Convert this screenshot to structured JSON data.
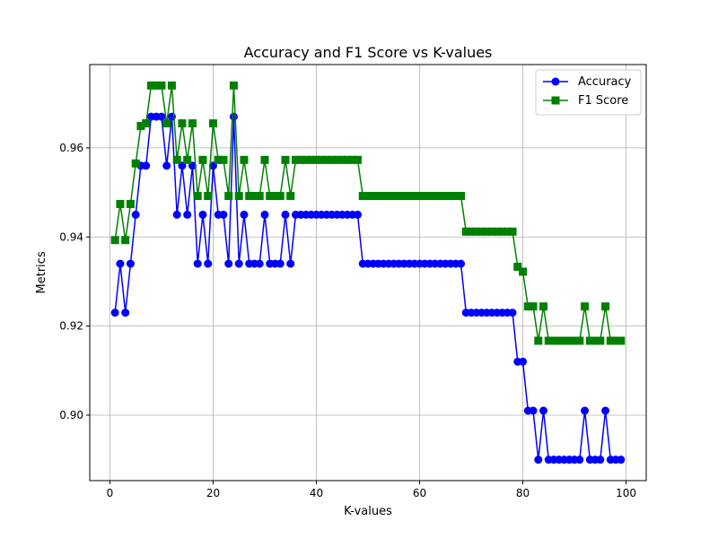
{
  "chart_data": {
    "type": "line",
    "title": "Accuracy and F1 Score vs K-values",
    "xlabel": "K-values",
    "ylabel": "Metrics",
    "xlim": [
      -3.9,
      103.9
    ],
    "ylim": [
      0.8853,
      0.9787
    ],
    "xticks": [
      0,
      20,
      40,
      60,
      80,
      100
    ],
    "yticks": [
      0.9,
      0.92,
      0.94,
      0.96
    ],
    "ytick_labels": [
      "0.90",
      "0.92",
      "0.94",
      "0.96"
    ],
    "grid": true,
    "legend_position": "top-right",
    "x": [
      1,
      2,
      3,
      4,
      5,
      6,
      7,
      8,
      9,
      10,
      11,
      12,
      13,
      14,
      15,
      16,
      17,
      18,
      19,
      20,
      21,
      22,
      23,
      24,
      25,
      26,
      27,
      28,
      29,
      30,
      31,
      32,
      33,
      34,
      35,
      36,
      37,
      38,
      39,
      40,
      41,
      42,
      43,
      44,
      45,
      46,
      47,
      48,
      49,
      50,
      51,
      52,
      53,
      54,
      55,
      56,
      57,
      58,
      59,
      60,
      61,
      62,
      63,
      64,
      65,
      66,
      67,
      68,
      69,
      70,
      71,
      72,
      73,
      74,
      75,
      76,
      77,
      78,
      79,
      80,
      81,
      82,
      83,
      84,
      85,
      86,
      87,
      88,
      89,
      90,
      91,
      92,
      93,
      94,
      95,
      96,
      97,
      98,
      99
    ],
    "series": [
      {
        "name": "Accuracy",
        "color": "#0000ff",
        "marker": "circle",
        "values": [
          0.923,
          0.934,
          0.923,
          0.934,
          0.945,
          0.956,
          0.956,
          0.967,
          0.967,
          0.967,
          0.956,
          0.967,
          0.945,
          0.956,
          0.945,
          0.956,
          0.934,
          0.945,
          0.934,
          0.956,
          0.945,
          0.945,
          0.934,
          0.967,
          0.934,
          0.945,
          0.934,
          0.934,
          0.934,
          0.945,
          0.934,
          0.934,
          0.934,
          0.945,
          0.934,
          0.945,
          0.945,
          0.945,
          0.945,
          0.945,
          0.945,
          0.945,
          0.945,
          0.945,
          0.945,
          0.945,
          0.945,
          0.945,
          0.934,
          0.934,
          0.934,
          0.934,
          0.934,
          0.934,
          0.934,
          0.934,
          0.934,
          0.934,
          0.934,
          0.934,
          0.934,
          0.934,
          0.934,
          0.934,
          0.934,
          0.934,
          0.934,
          0.934,
          0.923,
          0.923,
          0.923,
          0.923,
          0.923,
          0.923,
          0.923,
          0.923,
          0.923,
          0.923,
          0.912,
          0.912,
          0.901,
          0.901,
          0.89,
          0.901,
          0.89,
          0.89,
          0.89,
          0.89,
          0.89,
          0.89,
          0.89,
          0.901,
          0.89,
          0.89,
          0.89,
          0.901,
          0.89,
          0.89,
          0.89
        ]
      },
      {
        "name": "F1 Score",
        "color": "#008000",
        "marker": "square",
        "values": [
          0.9393,
          0.9474,
          0.9393,
          0.9474,
          0.9565,
          0.9649,
          0.9655,
          0.974,
          0.974,
          0.974,
          0.9655,
          0.974,
          0.9573,
          0.9655,
          0.9573,
          0.9655,
          0.9492,
          0.9573,
          0.9492,
          0.9655,
          0.9573,
          0.9573,
          0.9492,
          0.974,
          0.9492,
          0.9573,
          0.9492,
          0.9492,
          0.9492,
          0.9573,
          0.9492,
          0.9492,
          0.9492,
          0.9573,
          0.9492,
          0.9573,
          0.9573,
          0.9573,
          0.9573,
          0.9573,
          0.9573,
          0.9573,
          0.9573,
          0.9573,
          0.9573,
          0.9573,
          0.9573,
          0.9573,
          0.9492,
          0.9492,
          0.9492,
          0.9492,
          0.9492,
          0.9492,
          0.9492,
          0.9492,
          0.9492,
          0.9492,
          0.9492,
          0.9492,
          0.9492,
          0.9492,
          0.9492,
          0.9492,
          0.9492,
          0.9492,
          0.9492,
          0.9492,
          0.9412,
          0.9412,
          0.9412,
          0.9412,
          0.9412,
          0.9412,
          0.9412,
          0.9412,
          0.9412,
          0.9412,
          0.9333,
          0.9322,
          0.9244,
          0.9244,
          0.9167,
          0.9244,
          0.9167,
          0.9167,
          0.9167,
          0.9167,
          0.9167,
          0.9167,
          0.9167,
          0.9244,
          0.9167,
          0.9167,
          0.9167,
          0.9244,
          0.9167,
          0.9167,
          0.9167
        ]
      }
    ]
  }
}
